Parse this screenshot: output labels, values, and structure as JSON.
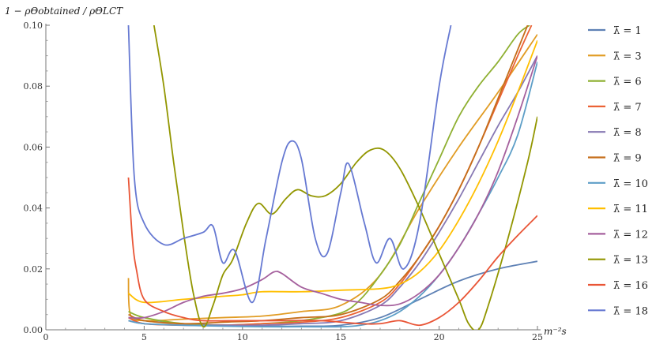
{
  "chart_data": {
    "type": "line",
    "title": "",
    "ylabel": "1 − ρΘobtained / ρΘLCT",
    "xlabel": "m⁻²s",
    "xlim": [
      0,
      25
    ],
    "ylim": [
      0,
      0.1
    ],
    "x_ticks": [
      "0",
      "5",
      "10",
      "15",
      "20",
      "25"
    ],
    "y_ticks": [
      "0.00",
      "0.02",
      "0.04",
      "0.06",
      "0.08",
      "0.10"
    ],
    "legend_position": "right",
    "grid": false,
    "series": [
      {
        "name": "λ̄ = 1",
        "color": "#5E81B5",
        "points": [
          [
            4.2,
            0.004
          ],
          [
            5,
            0.003
          ],
          [
            7,
            0.002
          ],
          [
            9,
            0.0015
          ],
          [
            11,
            0.0012
          ],
          [
            13,
            0.0012
          ],
          [
            15,
            0.0015
          ],
          [
            17,
            0.004
          ],
          [
            19,
            0.01
          ],
          [
            21,
            0.016
          ],
          [
            23,
            0.02
          ],
          [
            25,
            0.0225
          ]
        ]
      },
      {
        "name": "λ̄ = 3",
        "color": "#E19C24",
        "points": [
          [
            4.2,
            0.017
          ],
          [
            4.3,
            0.005
          ],
          [
            5,
            0.003
          ],
          [
            7,
            0.0035
          ],
          [
            9,
            0.004
          ],
          [
            11,
            0.0045
          ],
          [
            13,
            0.006
          ],
          [
            15,
            0.008
          ],
          [
            17,
            0.018
          ],
          [
            19,
            0.04
          ],
          [
            21,
            0.06
          ],
          [
            23,
            0.078
          ],
          [
            25,
            0.097
          ]
        ]
      },
      {
        "name": "λ̄ = 6",
        "color": "#8FB032",
        "points": [
          [
            4.2,
            0.006
          ],
          [
            5,
            0.004
          ],
          [
            7,
            0.002
          ],
          [
            9,
            0.0015
          ],
          [
            11,
            0.002
          ],
          [
            13,
            0.003
          ],
          [
            15,
            0.0055
          ],
          [
            16,
            0.01
          ],
          [
            17,
            0.018
          ],
          [
            18,
            0.028
          ],
          [
            19,
            0.042
          ],
          [
            20,
            0.056
          ],
          [
            21,
            0.07
          ],
          [
            22,
            0.08
          ],
          [
            23,
            0.088
          ],
          [
            24,
            0.097
          ],
          [
            24.6,
            0.1
          ]
        ]
      },
      {
        "name": "λ̄ = 7",
        "color": "#EB6235",
        "points": [
          [
            4.2,
            0.004
          ],
          [
            5,
            0.002
          ],
          [
            7,
            0.0015
          ],
          [
            9,
            0.0015
          ],
          [
            11,
            0.002
          ],
          [
            13,
            0.0025
          ],
          [
            15,
            0.004
          ],
          [
            17,
            0.009
          ],
          [
            18,
            0.015
          ],
          [
            19,
            0.024
          ],
          [
            20,
            0.034
          ],
          [
            21,
            0.046
          ],
          [
            22,
            0.06
          ],
          [
            23,
            0.075
          ],
          [
            24,
            0.09
          ],
          [
            24.7,
            0.1
          ]
        ]
      },
      {
        "name": "λ̄ = 8",
        "color": "#8778B3",
        "points": [
          [
            4.2,
            0.003
          ],
          [
            5,
            0.002
          ],
          [
            7,
            0.0015
          ],
          [
            9,
            0.0015
          ],
          [
            11,
            0.0015
          ],
          [
            13,
            0.002
          ],
          [
            15,
            0.003
          ],
          [
            17,
            0.008
          ],
          [
            18,
            0.014
          ],
          [
            19,
            0.022
          ],
          [
            20,
            0.032
          ],
          [
            21,
            0.043
          ],
          [
            22,
            0.055
          ],
          [
            23,
            0.067
          ],
          [
            24,
            0.078
          ],
          [
            25,
            0.09
          ]
        ]
      },
      {
        "name": "λ̄ = 9",
        "color": "#C56E1A",
        "points": [
          [
            4.2,
            0.005
          ],
          [
            5,
            0.003
          ],
          [
            7,
            0.002
          ],
          [
            9,
            0.0025
          ],
          [
            11,
            0.003
          ],
          [
            13,
            0.004
          ],
          [
            15,
            0.005
          ],
          [
            17,
            0.01
          ],
          [
            18,
            0.016
          ],
          [
            19,
            0.024
          ],
          [
            20,
            0.034
          ],
          [
            21,
            0.046
          ],
          [
            22,
            0.06
          ],
          [
            23,
            0.076
          ],
          [
            24,
            0.092
          ],
          [
            24.5,
            0.1
          ]
        ]
      },
      {
        "name": "λ̄ = 10",
        "color": "#5D9EC7",
        "points": [
          [
            4.2,
            0.003
          ],
          [
            5,
            0.002
          ],
          [
            7,
            0.0015
          ],
          [
            9,
            0.0012
          ],
          [
            11,
            0.001
          ],
          [
            13,
            0.001
          ],
          [
            15,
            0.001
          ],
          [
            16,
            0.0015
          ],
          [
            17,
            0.003
          ],
          [
            18,
            0.006
          ],
          [
            19,
            0.011
          ],
          [
            20,
            0.018
          ],
          [
            21,
            0.027
          ],
          [
            22,
            0.038
          ],
          [
            23,
            0.05
          ],
          [
            24,
            0.064
          ],
          [
            25,
            0.088
          ]
        ]
      },
      {
        "name": "λ̄ = 11",
        "color": "#FFBF00",
        "points": [
          [
            4.2,
            0.012
          ],
          [
            5,
            0.009
          ],
          [
            7,
            0.01
          ],
          [
            9,
            0.011
          ],
          [
            10,
            0.0115
          ],
          [
            11,
            0.0125
          ],
          [
            13,
            0.0125
          ],
          [
            15,
            0.013
          ],
          [
            17,
            0.0135
          ],
          [
            18,
            0.015
          ],
          [
            19,
            0.019
          ],
          [
            20,
            0.026
          ],
          [
            21,
            0.036
          ],
          [
            22,
            0.048
          ],
          [
            23,
            0.062
          ],
          [
            24,
            0.078
          ],
          [
            25,
            0.095
          ]
        ]
      },
      {
        "name": "λ̄ = 12",
        "color": "#A5609D",
        "points": [
          [
            4.2,
            0.004
          ],
          [
            5,
            0.004
          ],
          [
            6,
            0.006
          ],
          [
            7,
            0.009
          ],
          [
            8,
            0.011
          ],
          [
            9,
            0.012
          ],
          [
            10,
            0.0135
          ],
          [
            11,
            0.0165
          ],
          [
            11.6,
            0.019
          ],
          [
            12,
            0.0185
          ],
          [
            13,
            0.014
          ],
          [
            14,
            0.012
          ],
          [
            15,
            0.01
          ],
          [
            16,
            0.009
          ],
          [
            17,
            0.008
          ],
          [
            18,
            0.0085
          ],
          [
            19,
            0.012
          ],
          [
            20,
            0.018
          ],
          [
            21,
            0.027
          ],
          [
            22,
            0.038
          ],
          [
            23,
            0.052
          ],
          [
            24,
            0.07
          ],
          [
            25,
            0.09
          ]
        ]
      },
      {
        "name": "λ̄ = 13",
        "color": "#929600",
        "points": [
          [
            5.5,
            0.1
          ],
          [
            6,
            0.08
          ],
          [
            6.5,
            0.055
          ],
          [
            7,
            0.032
          ],
          [
            7.5,
            0.012
          ],
          [
            8,
            0.001
          ],
          [
            8.5,
            0.008
          ],
          [
            9,
            0.018
          ],
          [
            9.5,
            0.023
          ],
          [
            10.2,
            0.035
          ],
          [
            10.8,
            0.0415
          ],
          [
            11.5,
            0.038
          ],
          [
            12.2,
            0.043
          ],
          [
            12.8,
            0.046
          ],
          [
            13.5,
            0.044
          ],
          [
            14.2,
            0.044
          ],
          [
            15,
            0.048
          ],
          [
            15.8,
            0.055
          ],
          [
            16.5,
            0.059
          ],
          [
            17.2,
            0.059
          ],
          [
            18,
            0.053
          ],
          [
            19,
            0.04
          ],
          [
            20,
            0.025
          ],
          [
            21,
            0.01
          ],
          [
            21.5,
            0.002
          ],
          [
            22,
            0.0
          ],
          [
            22.5,
            0.008
          ],
          [
            23.5,
            0.03
          ],
          [
            24.5,
            0.055
          ],
          [
            25,
            0.07
          ]
        ]
      },
      {
        "name": "λ̄ = 16",
        "color": "#E95536",
        "points": [
          [
            4.2,
            0.05
          ],
          [
            4.4,
            0.03
          ],
          [
            4.6,
            0.02
          ],
          [
            5,
            0.01
          ],
          [
            6,
            0.006
          ],
          [
            7,
            0.004
          ],
          [
            8,
            0.003
          ],
          [
            10,
            0.003
          ],
          [
            12,
            0.003
          ],
          [
            14,
            0.003
          ],
          [
            16,
            0.002
          ],
          [
            17,
            0.002
          ],
          [
            18,
            0.003
          ],
          [
            19,
            0.0015
          ],
          [
            20,
            0.004
          ],
          [
            21,
            0.009
          ],
          [
            22,
            0.016
          ],
          [
            23,
            0.024
          ],
          [
            24,
            0.031
          ],
          [
            25,
            0.0375
          ]
        ]
      },
      {
        "name": "λ̄ = 18",
        "color": "#6679D2",
        "points": [
          [
            4.2,
            0.1
          ],
          [
            4.5,
            0.05
          ],
          [
            5,
            0.035
          ],
          [
            6,
            0.028
          ],
          [
            7,
            0.03
          ],
          [
            8,
            0.032
          ],
          [
            8.5,
            0.034
          ],
          [
            9.0,
            0.022
          ],
          [
            9.6,
            0.026
          ],
          [
            10.5,
            0.009
          ],
          [
            11.2,
            0.03
          ],
          [
            12.0,
            0.055
          ],
          [
            12.5,
            0.062
          ],
          [
            13.0,
            0.056
          ],
          [
            13.7,
            0.03
          ],
          [
            14.3,
            0.025
          ],
          [
            15.0,
            0.045
          ],
          [
            15.4,
            0.0545
          ],
          [
            16.2,
            0.035
          ],
          [
            16.8,
            0.022
          ],
          [
            17.5,
            0.03
          ],
          [
            18.2,
            0.02
          ],
          [
            19.0,
            0.035
          ],
          [
            20.0,
            0.08
          ],
          [
            20.6,
            0.1
          ]
        ]
      }
    ]
  }
}
